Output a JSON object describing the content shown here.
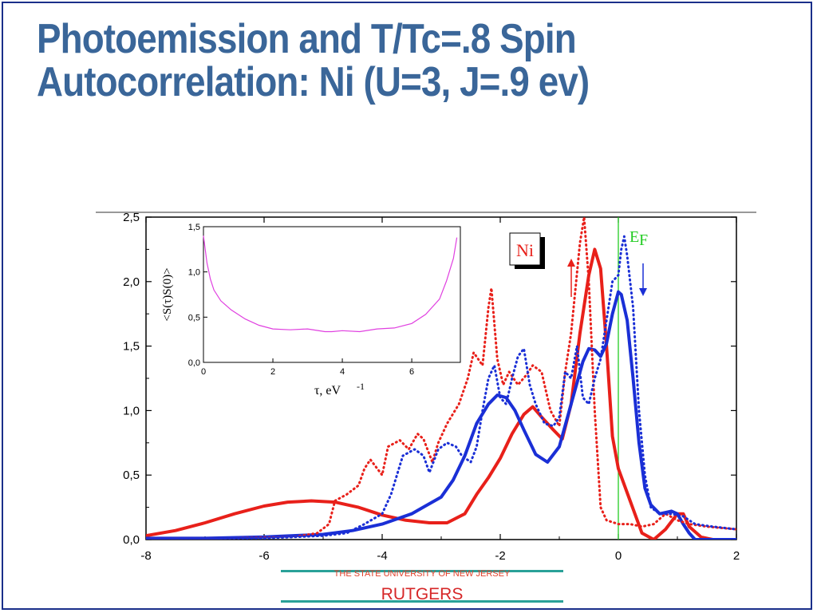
{
  "slide": {
    "title_line1": "Photoemission and T/Tc=.8 Spin",
    "title_line2": "Autocorrelation: Ni (U=3, J=.9 ev)"
  },
  "footer": {
    "university": "THE STATE UNIVERSITY OF NEW JERSEY",
    "name": "RUTGERS"
  },
  "colors": {
    "title": "#3a6699",
    "up_spin": "#e8201a",
    "down_spin": "#1a2fd6",
    "fermi": "#22cc22",
    "inset_curve": "#e040e0",
    "footer_line": "#2aa198"
  },
  "chart_data": [
    {
      "type": "line",
      "xlim": [
        -8,
        2
      ],
      "ylim": [
        0,
        2.5
      ],
      "x_ticks": [
        "-8",
        "-6",
        "-4",
        "-2",
        "0",
        "2"
      ],
      "y_ticks": [
        "0,0",
        "0,5",
        "1,0",
        "1,5",
        "2,0",
        "2,5"
      ],
      "labels": {
        "material": "Ni",
        "fermi_level": "E",
        "fermi_sub": "F"
      },
      "fermi_x": 0,
      "series": [
        {
          "style": "solid",
          "color": "red",
          "points": [
            [
              -8,
              0.03
            ],
            [
              -7.5,
              0.07
            ],
            [
              -7,
              0.13
            ],
            [
              -6.5,
              0.2
            ],
            [
              -6,
              0.26
            ],
            [
              -5.6,
              0.29
            ],
            [
              -5.2,
              0.3
            ],
            [
              -4.8,
              0.29
            ],
            [
              -4.4,
              0.25
            ],
            [
              -4,
              0.19
            ],
            [
              -3.6,
              0.15
            ],
            [
              -3.2,
              0.13
            ],
            [
              -2.9,
              0.13
            ],
            [
              -2.6,
              0.2
            ],
            [
              -2.4,
              0.35
            ],
            [
              -2.2,
              0.48
            ],
            [
              -2,
              0.63
            ],
            [
              -1.8,
              0.82
            ],
            [
              -1.6,
              0.97
            ],
            [
              -1.45,
              1.03
            ],
            [
              -1.3,
              0.95
            ],
            [
              -1.1,
              0.85
            ],
            [
              -0.95,
              0.78
            ],
            [
              -0.8,
              1.05
            ],
            [
              -0.65,
              1.6
            ],
            [
              -0.5,
              2.05
            ],
            [
              -0.4,
              2.25
            ],
            [
              -0.3,
              2.1
            ],
            [
              -0.2,
              1.5
            ],
            [
              -0.1,
              0.8
            ],
            [
              0,
              0.55
            ],
            [
              0.2,
              0.3
            ],
            [
              0.4,
              0.05
            ],
            [
              0.6,
              0
            ],
            [
              0.8,
              0.08
            ],
            [
              1,
              0.2
            ],
            [
              1.1,
              0.2
            ],
            [
              1.2,
              0.1
            ],
            [
              1.4,
              0.02
            ],
            [
              1.6,
              0
            ],
            [
              2,
              0
            ]
          ]
        },
        {
          "style": "solid",
          "color": "blue",
          "points": [
            [
              -8,
              0.01
            ],
            [
              -7,
              0.01
            ],
            [
              -6,
              0.02
            ],
            [
              -5,
              0.04
            ],
            [
              -4.5,
              0.07
            ],
            [
              -4,
              0.12
            ],
            [
              -3.5,
              0.2
            ],
            [
              -3,
              0.33
            ],
            [
              -2.8,
              0.46
            ],
            [
              -2.6,
              0.65
            ],
            [
              -2.4,
              0.9
            ],
            [
              -2.2,
              1.05
            ],
            [
              -2.05,
              1.12
            ],
            [
              -1.9,
              1.1
            ],
            [
              -1.75,
              1.0
            ],
            [
              -1.6,
              0.85
            ],
            [
              -1.4,
              0.66
            ],
            [
              -1.2,
              0.6
            ],
            [
              -1,
              0.72
            ],
            [
              -0.8,
              1.05
            ],
            [
              -0.6,
              1.38
            ],
            [
              -0.5,
              1.48
            ],
            [
              -0.4,
              1.47
            ],
            [
              -0.3,
              1.42
            ],
            [
              -0.2,
              1.52
            ],
            [
              -0.1,
              1.75
            ],
            [
              0,
              1.92
            ],
            [
              0.05,
              1.9
            ],
            [
              0.15,
              1.7
            ],
            [
              0.25,
              1.25
            ],
            [
              0.35,
              0.75
            ],
            [
              0.45,
              0.4
            ],
            [
              0.55,
              0.27
            ],
            [
              0.7,
              0.2
            ],
            [
              0.9,
              0.22
            ],
            [
              1,
              0.2
            ],
            [
              1.1,
              0.12
            ],
            [
              1.2,
              0.05
            ],
            [
              1.3,
              0
            ],
            [
              1.6,
              0
            ],
            [
              2,
              0
            ]
          ]
        },
        {
          "style": "dotted",
          "color": "red",
          "points": [
            [
              -8,
              0.01
            ],
            [
              -6.5,
              0.01
            ],
            [
              -5.5,
              0.02
            ],
            [
              -5.1,
              0.05
            ],
            [
              -4.9,
              0.12
            ],
            [
              -4.8,
              0.3
            ],
            [
              -4.6,
              0.35
            ],
            [
              -4.4,
              0.42
            ],
            [
              -4.3,
              0.55
            ],
            [
              -4.2,
              0.62
            ],
            [
              -4.0,
              0.5
            ],
            [
              -3.9,
              0.72
            ],
            [
              -3.7,
              0.77
            ],
            [
              -3.55,
              0.7
            ],
            [
              -3.4,
              0.82
            ],
            [
              -3.3,
              0.78
            ],
            [
              -3.15,
              0.6
            ],
            [
              -3.05,
              0.75
            ],
            [
              -2.9,
              0.9
            ],
            [
              -2.7,
              1.05
            ],
            [
              -2.55,
              1.25
            ],
            [
              -2.45,
              1.45
            ],
            [
              -2.3,
              1.35
            ],
            [
              -2.2,
              1.8
            ],
            [
              -2.15,
              1.95
            ],
            [
              -2.05,
              1.4
            ],
            [
              -1.95,
              1.2
            ],
            [
              -1.85,
              1.3
            ],
            [
              -1.7,
              1.2
            ],
            [
              -1.55,
              1.28
            ],
            [
              -1.45,
              1.35
            ],
            [
              -1.3,
              1.3
            ],
            [
              -1.15,
              1.0
            ],
            [
              -1.0,
              0.88
            ],
            [
              -0.9,
              1.3
            ],
            [
              -0.8,
              1.6
            ],
            [
              -0.65,
              2.3
            ],
            [
              -0.58,
              2.5
            ],
            [
              -0.5,
              2.0
            ],
            [
              -0.4,
              1.0
            ],
            [
              -0.3,
              0.25
            ],
            [
              -0.2,
              0.15
            ],
            [
              0,
              0.12
            ],
            [
              0.2,
              0.12
            ],
            [
              0.4,
              0.1
            ],
            [
              0.6,
              0.12
            ],
            [
              0.8,
              0.2
            ],
            [
              1,
              0.15
            ],
            [
              1.2,
              0.12
            ],
            [
              1.5,
              0.1
            ],
            [
              2,
              0.08
            ]
          ]
        },
        {
          "style": "dotted",
          "color": "blue",
          "points": [
            [
              -8,
              0.01
            ],
            [
              -6,
              0.01
            ],
            [
              -5,
              0.03
            ],
            [
              -4.6,
              0.05
            ],
            [
              -4.3,
              0.12
            ],
            [
              -4.0,
              0.2
            ],
            [
              -3.85,
              0.35
            ],
            [
              -3.65,
              0.65
            ],
            [
              -3.45,
              0.7
            ],
            [
              -3.3,
              0.65
            ],
            [
              -3.2,
              0.52
            ],
            [
              -3.05,
              0.7
            ],
            [
              -2.9,
              0.75
            ],
            [
              -2.75,
              0.72
            ],
            [
              -2.65,
              0.65
            ],
            [
              -2.5,
              0.6
            ],
            [
              -2.4,
              0.72
            ],
            [
              -2.3,
              1.0
            ],
            [
              -2.2,
              1.25
            ],
            [
              -2.1,
              1.35
            ],
            [
              -2.0,
              1.1
            ],
            [
              -1.9,
              1.05
            ],
            [
              -1.8,
              1.25
            ],
            [
              -1.7,
              1.42
            ],
            [
              -1.6,
              1.48
            ],
            [
              -1.5,
              1.2
            ],
            [
              -1.4,
              1.05
            ],
            [
              -1.25,
              0.9
            ],
            [
              -1.1,
              0.88
            ],
            [
              -1.0,
              0.95
            ],
            [
              -0.9,
              1.3
            ],
            [
              -0.8,
              1.25
            ],
            [
              -0.7,
              1.5
            ],
            [
              -0.6,
              1.1
            ],
            [
              -0.5,
              1.05
            ],
            [
              -0.4,
              1.25
            ],
            [
              -0.3,
              1.4
            ],
            [
              -0.2,
              1.7
            ],
            [
              -0.1,
              2.0
            ],
            [
              0,
              2.05
            ],
            [
              0.05,
              2.25
            ],
            [
              0.1,
              2.35
            ],
            [
              0.15,
              2.2
            ],
            [
              0.25,
              1.8
            ],
            [
              0.35,
              1.0
            ],
            [
              0.45,
              0.5
            ],
            [
              0.55,
              0.25
            ],
            [
              0.7,
              0.2
            ],
            [
              0.9,
              0.2
            ],
            [
              1.1,
              0.18
            ],
            [
              1.3,
              0.12
            ],
            [
              1.6,
              0.1
            ],
            [
              2,
              0.08
            ]
          ]
        }
      ]
    },
    {
      "type": "line",
      "xlim": [
        0,
        7.4
      ],
      "ylim": [
        0,
        1.5
      ],
      "x_ticks": [
        "0",
        "2",
        "4",
        "6"
      ],
      "y_ticks": [
        "0,0",
        "0,5",
        "1,0",
        "1,5"
      ],
      "xlabel": "τ, eV",
      "xlabel_sup": "-1",
      "ylabel": "<S(τ)S(0)>",
      "series": [
        {
          "color": "magenta",
          "points": [
            [
              0,
              1.4
            ],
            [
              0.1,
              1.1
            ],
            [
              0.2,
              0.92
            ],
            [
              0.3,
              0.8
            ],
            [
              0.5,
              0.68
            ],
            [
              0.8,
              0.58
            ],
            [
              1.2,
              0.48
            ],
            [
              1.6,
              0.41
            ],
            [
              2,
              0.37
            ],
            [
              2.5,
              0.36
            ],
            [
              3,
              0.37
            ],
            [
              3.5,
              0.34
            ],
            [
              3.7,
              0.34
            ],
            [
              4,
              0.35
            ],
            [
              4.5,
              0.34
            ],
            [
              5,
              0.37
            ],
            [
              5.5,
              0.38
            ],
            [
              6,
              0.43
            ],
            [
              6.4,
              0.53
            ],
            [
              6.8,
              0.7
            ],
            [
              7.0,
              0.9
            ],
            [
              7.2,
              1.15
            ],
            [
              7.3,
              1.38
            ]
          ]
        }
      ]
    }
  ]
}
